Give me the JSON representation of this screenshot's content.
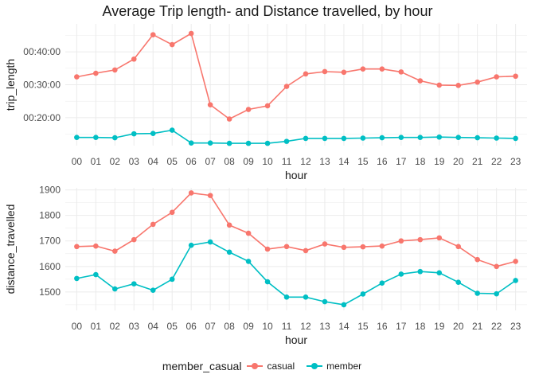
{
  "title": "Average Trip length- and Distance travelled, by hour",
  "legend": {
    "title": "member_casual",
    "items": [
      {
        "label": "casual",
        "color": "#F8766D"
      },
      {
        "label": "member",
        "color": "#00BFC4"
      }
    ]
  },
  "chart_data": [
    {
      "type": "line",
      "xlabel": "hour",
      "ylabel": "trip_length",
      "categories": [
        "00",
        "01",
        "02",
        "03",
        "04",
        "05",
        "06",
        "07",
        "08",
        "09",
        "10",
        "11",
        "12",
        "13",
        "14",
        "15",
        "16",
        "17",
        "18",
        "19",
        "20",
        "21",
        "22",
        "23"
      ],
      "ylim": [
        11.5,
        48.5
      ],
      "yticks": [
        20,
        30,
        40
      ],
      "ytick_labels": [
        "00:20:00",
        "00:30:00",
        "00:40:00"
      ],
      "series": [
        {
          "name": "casual",
          "color": "#F8766D",
          "values": [
            32.4,
            33.5,
            34.5,
            37.8,
            45.2,
            42.2,
            45.6,
            23.9,
            19.6,
            22.5,
            23.6,
            29.5,
            33.3,
            34.0,
            33.8,
            34.8,
            34.8,
            33.9,
            31.2,
            29.9,
            29.8,
            30.8,
            32.4,
            32.6
          ]
        },
        {
          "name": "member",
          "color": "#00BFC4",
          "values": [
            14.0,
            14.0,
            13.9,
            15.1,
            15.2,
            16.2,
            12.3,
            12.3,
            12.2,
            12.2,
            12.2,
            12.8,
            13.7,
            13.7,
            13.7,
            13.8,
            13.9,
            14.0,
            14.0,
            14.1,
            14.0,
            13.9,
            13.8,
            13.7
          ]
        }
      ]
    },
    {
      "type": "line",
      "xlabel": "hour",
      "ylabel": "distance_travelled",
      "categories": [
        "00",
        "01",
        "02",
        "03",
        "04",
        "05",
        "06",
        "07",
        "08",
        "09",
        "10",
        "11",
        "12",
        "13",
        "14",
        "15",
        "16",
        "17",
        "18",
        "19",
        "20",
        "21",
        "22",
        "23"
      ],
      "ylim": [
        1428,
        1908
      ],
      "yticks": [
        1500,
        1600,
        1700,
        1800,
        1900
      ],
      "ytick_labels": [
        "1500",
        "1600",
        "1700",
        "1800",
        "1900"
      ],
      "series": [
        {
          "name": "casual",
          "color": "#F8766D",
          "values": [
            1678,
            1680,
            1660,
            1705,
            1765,
            1812,
            1888,
            1878,
            1762,
            1730,
            1668,
            1678,
            1662,
            1688,
            1675,
            1677,
            1680,
            1700,
            1705,
            1712,
            1678,
            1627,
            1600,
            1620
          ]
        },
        {
          "name": "member",
          "color": "#00BFC4",
          "values": [
            1553,
            1568,
            1512,
            1532,
            1507,
            1550,
            1683,
            1696,
            1656,
            1620,
            1540,
            1480,
            1480,
            1462,
            1450,
            1492,
            1535,
            1570,
            1580,
            1575,
            1538,
            1495,
            1493,
            1545
          ]
        }
      ]
    }
  ]
}
